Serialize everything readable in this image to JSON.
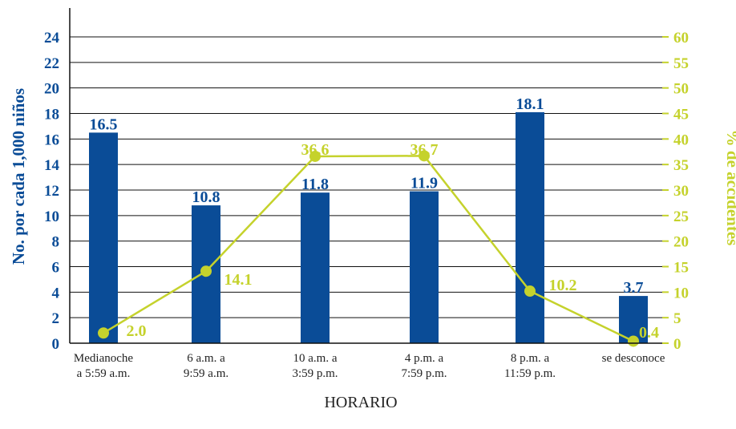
{
  "chart_data": {
    "type": "bar",
    "xlabel": "HORARIO",
    "ylabel": "No. por cada 1,000 niños",
    "ylabel_right": "% de accidentes",
    "ylim": [
      0,
      24
    ],
    "ylim_right": [
      0,
      60
    ],
    "yticks": [
      0,
      2,
      4,
      6,
      8,
      10,
      12,
      14,
      16,
      18,
      20,
      22,
      24
    ],
    "yticks_right": [
      0,
      5,
      10,
      15,
      20,
      25,
      30,
      35,
      40,
      45,
      50,
      55,
      60
    ],
    "grid": true,
    "categories": [
      [
        "Medianoche",
        "a 5:59 a.m."
      ],
      [
        "6 a.m. a",
        "9:59 a.m."
      ],
      [
        "10 a.m. a",
        "3:59 p.m."
      ],
      [
        "4 p.m. a",
        "7:59 p.m."
      ],
      [
        "8 p.m. a",
        "11:59 p.m."
      ],
      [
        "se desconoce"
      ]
    ],
    "series": [
      {
        "type": "bar",
        "axis": "left",
        "color": "#0a4c97",
        "values": [
          16.5,
          10.8,
          11.8,
          11.9,
          18.1,
          3.7
        ],
        "labels": [
          "16.5",
          "10.8",
          "11.8",
          "11.9",
          "18.1",
          "3.7"
        ]
      },
      {
        "type": "line",
        "axis": "right",
        "color": "#c5d22c",
        "values": [
          2.0,
          14.1,
          36.6,
          36.7,
          10.2,
          0.4
        ],
        "labels": [
          "2.0",
          "14.1",
          "36.6",
          "36.7",
          "10.2",
          "0.4"
        ]
      }
    ]
  }
}
